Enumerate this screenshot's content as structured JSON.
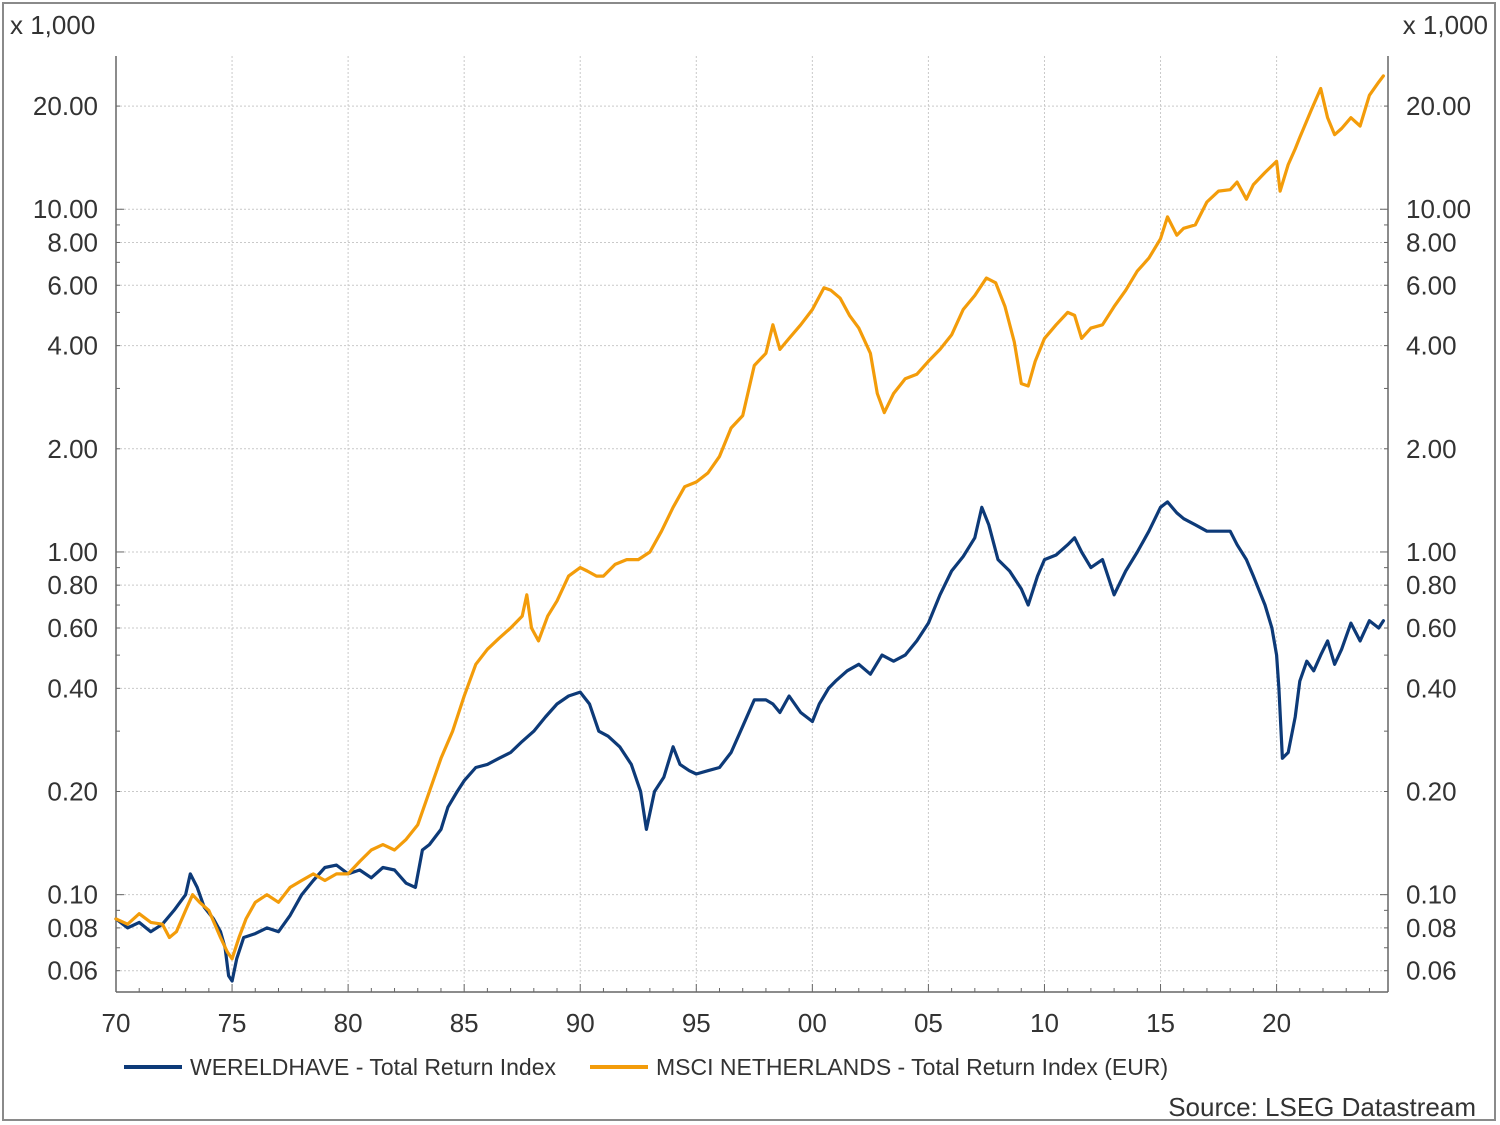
{
  "chart_data": {
    "type": "line",
    "title": "",
    "y_unit_label": "x 1,000",
    "y_scale": "log",
    "ylim": [
      0.052,
      28
    ],
    "xlim": [
      1970,
      2024.8
    ],
    "y_ticks": [
      {
        "value": 20,
        "label": "20.00"
      },
      {
        "value": 10,
        "label": "10.00"
      },
      {
        "value": 8,
        "label": "8.00"
      },
      {
        "value": 6,
        "label": "6.00"
      },
      {
        "value": 4,
        "label": "4.00"
      },
      {
        "value": 2,
        "label": "2.00"
      },
      {
        "value": 1,
        "label": "1.00"
      },
      {
        "value": 0.8,
        "label": "0.80"
      },
      {
        "value": 0.6,
        "label": "0.60"
      },
      {
        "value": 0.4,
        "label": "0.40"
      },
      {
        "value": 0.2,
        "label": "0.20"
      },
      {
        "value": 0.1,
        "label": "0.10"
      },
      {
        "value": 0.08,
        "label": "0.08"
      },
      {
        "value": 0.06,
        "label": "0.06"
      }
    ],
    "x_ticks": [
      {
        "value": 1970,
        "label": "70"
      },
      {
        "value": 1975,
        "label": "75"
      },
      {
        "value": 1980,
        "label": "80"
      },
      {
        "value": 1985,
        "label": "85"
      },
      {
        "value": 1990,
        "label": "90"
      },
      {
        "value": 1995,
        "label": "95"
      },
      {
        "value": 2000,
        "label": "00"
      },
      {
        "value": 2005,
        "label": "05"
      },
      {
        "value": 2010,
        "label": "10"
      },
      {
        "value": 2015,
        "label": "15"
      },
      {
        "value": 2020,
        "label": "20"
      }
    ],
    "grid": true,
    "legend_position": "bottom-left",
    "series": [
      {
        "name": "WERELDHAVE - Total Return Index",
        "color": "#0d3a78",
        "points": [
          [
            1970.0,
            0.085
          ],
          [
            1970.5,
            0.08
          ],
          [
            1971.0,
            0.083
          ],
          [
            1971.5,
            0.078
          ],
          [
            1972.0,
            0.082
          ],
          [
            1972.5,
            0.09
          ],
          [
            1973.0,
            0.1
          ],
          [
            1973.2,
            0.115
          ],
          [
            1973.5,
            0.105
          ],
          [
            1973.8,
            0.092
          ],
          [
            1974.2,
            0.085
          ],
          [
            1974.5,
            0.078
          ],
          [
            1974.7,
            0.07
          ],
          [
            1974.85,
            0.058
          ],
          [
            1975.0,
            0.056
          ],
          [
            1975.2,
            0.065
          ],
          [
            1975.5,
            0.075
          ],
          [
            1976.0,
            0.077
          ],
          [
            1976.5,
            0.08
          ],
          [
            1977.0,
            0.078
          ],
          [
            1977.5,
            0.087
          ],
          [
            1978.0,
            0.1
          ],
          [
            1978.5,
            0.11
          ],
          [
            1979.0,
            0.12
          ],
          [
            1979.5,
            0.122
          ],
          [
            1980.0,
            0.115
          ],
          [
            1980.5,
            0.118
          ],
          [
            1981.0,
            0.112
          ],
          [
            1981.5,
            0.12
          ],
          [
            1982.0,
            0.118
          ],
          [
            1982.5,
            0.108
          ],
          [
            1982.9,
            0.105
          ],
          [
            1983.2,
            0.135
          ],
          [
            1983.5,
            0.14
          ],
          [
            1984.0,
            0.155
          ],
          [
            1984.3,
            0.18
          ],
          [
            1984.7,
            0.2
          ],
          [
            1985.0,
            0.215
          ],
          [
            1985.5,
            0.235
          ],
          [
            1986.0,
            0.24
          ],
          [
            1986.5,
            0.25
          ],
          [
            1987.0,
            0.26
          ],
          [
            1987.5,
            0.28
          ],
          [
            1988.0,
            0.3
          ],
          [
            1988.5,
            0.33
          ],
          [
            1989.0,
            0.36
          ],
          [
            1989.5,
            0.38
          ],
          [
            1990.0,
            0.39
          ],
          [
            1990.4,
            0.36
          ],
          [
            1990.8,
            0.3
          ],
          [
            1991.2,
            0.29
          ],
          [
            1991.7,
            0.27
          ],
          [
            1992.2,
            0.24
          ],
          [
            1992.6,
            0.2
          ],
          [
            1992.85,
            0.155
          ],
          [
            1993.2,
            0.2
          ],
          [
            1993.6,
            0.22
          ],
          [
            1994.0,
            0.27
          ],
          [
            1994.3,
            0.24
          ],
          [
            1994.7,
            0.23
          ],
          [
            1995.0,
            0.225
          ],
          [
            1995.5,
            0.23
          ],
          [
            1996.0,
            0.235
          ],
          [
            1996.5,
            0.26
          ],
          [
            1997.0,
            0.31
          ],
          [
            1997.5,
            0.37
          ],
          [
            1998.0,
            0.37
          ],
          [
            1998.3,
            0.36
          ],
          [
            1998.6,
            0.34
          ],
          [
            1999.0,
            0.38
          ],
          [
            1999.5,
            0.34
          ],
          [
            2000.0,
            0.32
          ],
          [
            2000.3,
            0.36
          ],
          [
            2000.7,
            0.4
          ],
          [
            2001.0,
            0.42
          ],
          [
            2001.5,
            0.45
          ],
          [
            2002.0,
            0.47
          ],
          [
            2002.5,
            0.44
          ],
          [
            2003.0,
            0.5
          ],
          [
            2003.5,
            0.48
          ],
          [
            2004.0,
            0.5
          ],
          [
            2004.5,
            0.55
          ],
          [
            2005.0,
            0.62
          ],
          [
            2005.5,
            0.75
          ],
          [
            2006.0,
            0.88
          ],
          [
            2006.5,
            0.97
          ],
          [
            2007.0,
            1.1
          ],
          [
            2007.3,
            1.35
          ],
          [
            2007.6,
            1.2
          ],
          [
            2008.0,
            0.95
          ],
          [
            2008.5,
            0.88
          ],
          [
            2009.0,
            0.78
          ],
          [
            2009.3,
            0.7
          ],
          [
            2009.7,
            0.85
          ],
          [
            2010.0,
            0.95
          ],
          [
            2010.5,
            0.98
          ],
          [
            2011.0,
            1.05
          ],
          [
            2011.3,
            1.1
          ],
          [
            2011.6,
            1.0
          ],
          [
            2012.0,
            0.9
          ],
          [
            2012.5,
            0.95
          ],
          [
            2013.0,
            0.75
          ],
          [
            2013.5,
            0.88
          ],
          [
            2014.0,
            1.0
          ],
          [
            2014.5,
            1.15
          ],
          [
            2015.0,
            1.35
          ],
          [
            2015.3,
            1.4
          ],
          [
            2015.7,
            1.3
          ],
          [
            2016.0,
            1.25
          ],
          [
            2016.5,
            1.2
          ],
          [
            2017.0,
            1.15
          ],
          [
            2017.5,
            1.15
          ],
          [
            2018.0,
            1.15
          ],
          [
            2018.3,
            1.05
          ],
          [
            2018.7,
            0.95
          ],
          [
            2019.0,
            0.85
          ],
          [
            2019.5,
            0.7
          ],
          [
            2019.8,
            0.6
          ],
          [
            2020.0,
            0.5
          ],
          [
            2020.1,
            0.4
          ],
          [
            2020.25,
            0.25
          ],
          [
            2020.5,
            0.26
          ],
          [
            2020.8,
            0.33
          ],
          [
            2021.0,
            0.42
          ],
          [
            2021.3,
            0.48
          ],
          [
            2021.6,
            0.45
          ],
          [
            2021.9,
            0.5
          ],
          [
            2022.2,
            0.55
          ],
          [
            2022.5,
            0.47
          ],
          [
            2022.8,
            0.52
          ],
          [
            2023.2,
            0.62
          ],
          [
            2023.6,
            0.55
          ],
          [
            2024.0,
            0.63
          ],
          [
            2024.4,
            0.6
          ],
          [
            2024.6,
            0.63
          ]
        ]
      },
      {
        "name": "MSCI NETHERLANDS - Total Return Index (EUR)",
        "color": "#f39c0a",
        "points": [
          [
            1970.0,
            0.085
          ],
          [
            1970.5,
            0.082
          ],
          [
            1971.0,
            0.088
          ],
          [
            1971.5,
            0.083
          ],
          [
            1972.0,
            0.082
          ],
          [
            1972.3,
            0.075
          ],
          [
            1972.6,
            0.078
          ],
          [
            1973.0,
            0.09
          ],
          [
            1973.3,
            0.1
          ],
          [
            1973.6,
            0.095
          ],
          [
            1974.0,
            0.09
          ],
          [
            1974.5,
            0.075
          ],
          [
            1974.8,
            0.068
          ],
          [
            1975.0,
            0.065
          ],
          [
            1975.3,
            0.075
          ],
          [
            1975.6,
            0.085
          ],
          [
            1976.0,
            0.095
          ],
          [
            1976.5,
            0.1
          ],
          [
            1977.0,
            0.095
          ],
          [
            1977.5,
            0.105
          ],
          [
            1978.0,
            0.11
          ],
          [
            1978.5,
            0.115
          ],
          [
            1979.0,
            0.11
          ],
          [
            1979.5,
            0.115
          ],
          [
            1980.0,
            0.115
          ],
          [
            1980.5,
            0.125
          ],
          [
            1981.0,
            0.135
          ],
          [
            1981.5,
            0.14
          ],
          [
            1982.0,
            0.135
          ],
          [
            1982.5,
            0.145
          ],
          [
            1983.0,
            0.16
          ],
          [
            1983.5,
            0.2
          ],
          [
            1984.0,
            0.25
          ],
          [
            1984.5,
            0.3
          ],
          [
            1985.0,
            0.38
          ],
          [
            1985.5,
            0.47
          ],
          [
            1986.0,
            0.52
          ],
          [
            1986.5,
            0.56
          ],
          [
            1987.0,
            0.6
          ],
          [
            1987.5,
            0.65
          ],
          [
            1987.7,
            0.75
          ],
          [
            1987.9,
            0.6
          ],
          [
            1988.2,
            0.55
          ],
          [
            1988.6,
            0.65
          ],
          [
            1989.0,
            0.72
          ],
          [
            1989.5,
            0.85
          ],
          [
            1990.0,
            0.9
          ],
          [
            1990.3,
            0.88
          ],
          [
            1990.7,
            0.85
          ],
          [
            1991.0,
            0.85
          ],
          [
            1991.5,
            0.92
          ],
          [
            1992.0,
            0.95
          ],
          [
            1992.5,
            0.95
          ],
          [
            1993.0,
            1.0
          ],
          [
            1993.5,
            1.15
          ],
          [
            1994.0,
            1.35
          ],
          [
            1994.5,
            1.55
          ],
          [
            1995.0,
            1.6
          ],
          [
            1995.5,
            1.7
          ],
          [
            1996.0,
            1.9
          ],
          [
            1996.5,
            2.3
          ],
          [
            1997.0,
            2.5
          ],
          [
            1997.5,
            3.5
          ],
          [
            1998.0,
            3.8
          ],
          [
            1998.3,
            4.6
          ],
          [
            1998.6,
            3.9
          ],
          [
            1999.0,
            4.2
          ],
          [
            1999.5,
            4.6
          ],
          [
            2000.0,
            5.1
          ],
          [
            2000.5,
            5.9
          ],
          [
            2000.8,
            5.8
          ],
          [
            2001.2,
            5.5
          ],
          [
            2001.6,
            4.9
          ],
          [
            2002.0,
            4.5
          ],
          [
            2002.5,
            3.8
          ],
          [
            2002.8,
            2.9
          ],
          [
            2003.1,
            2.55
          ],
          [
            2003.5,
            2.9
          ],
          [
            2004.0,
            3.2
          ],
          [
            2004.5,
            3.3
          ],
          [
            2005.0,
            3.6
          ],
          [
            2005.5,
            3.9
          ],
          [
            2006.0,
            4.3
          ],
          [
            2006.5,
            5.1
          ],
          [
            2007.0,
            5.6
          ],
          [
            2007.5,
            6.3
          ],
          [
            2007.9,
            6.1
          ],
          [
            2008.3,
            5.2
          ],
          [
            2008.7,
            4.1
          ],
          [
            2009.0,
            3.1
          ],
          [
            2009.3,
            3.05
          ],
          [
            2009.6,
            3.6
          ],
          [
            2010.0,
            4.2
          ],
          [
            2010.5,
            4.6
          ],
          [
            2011.0,
            5.0
          ],
          [
            2011.3,
            4.9
          ],
          [
            2011.6,
            4.2
          ],
          [
            2012.0,
            4.5
          ],
          [
            2012.5,
            4.6
          ],
          [
            2013.0,
            5.2
          ],
          [
            2013.5,
            5.8
          ],
          [
            2014.0,
            6.6
          ],
          [
            2014.5,
            7.2
          ],
          [
            2015.0,
            8.2
          ],
          [
            2015.3,
            9.5
          ],
          [
            2015.7,
            8.4
          ],
          [
            2016.0,
            8.8
          ],
          [
            2016.5,
            9.0
          ],
          [
            2017.0,
            10.5
          ],
          [
            2017.5,
            11.3
          ],
          [
            2018.0,
            11.4
          ],
          [
            2018.3,
            12.0
          ],
          [
            2018.7,
            10.7
          ],
          [
            2019.0,
            11.8
          ],
          [
            2019.5,
            12.8
          ],
          [
            2020.0,
            13.8
          ],
          [
            2020.15,
            11.3
          ],
          [
            2020.5,
            13.5
          ],
          [
            2020.8,
            15.0
          ],
          [
            2021.0,
            16.2
          ],
          [
            2021.5,
            19.5
          ],
          [
            2021.9,
            22.5
          ],
          [
            2022.2,
            18.5
          ],
          [
            2022.5,
            16.5
          ],
          [
            2022.8,
            17.2
          ],
          [
            2023.2,
            18.5
          ],
          [
            2023.6,
            17.5
          ],
          [
            2024.0,
            21.5
          ],
          [
            2024.4,
            23.5
          ],
          [
            2024.6,
            24.5
          ]
        ]
      }
    ],
    "source": "Source: LSEG Datastream"
  }
}
